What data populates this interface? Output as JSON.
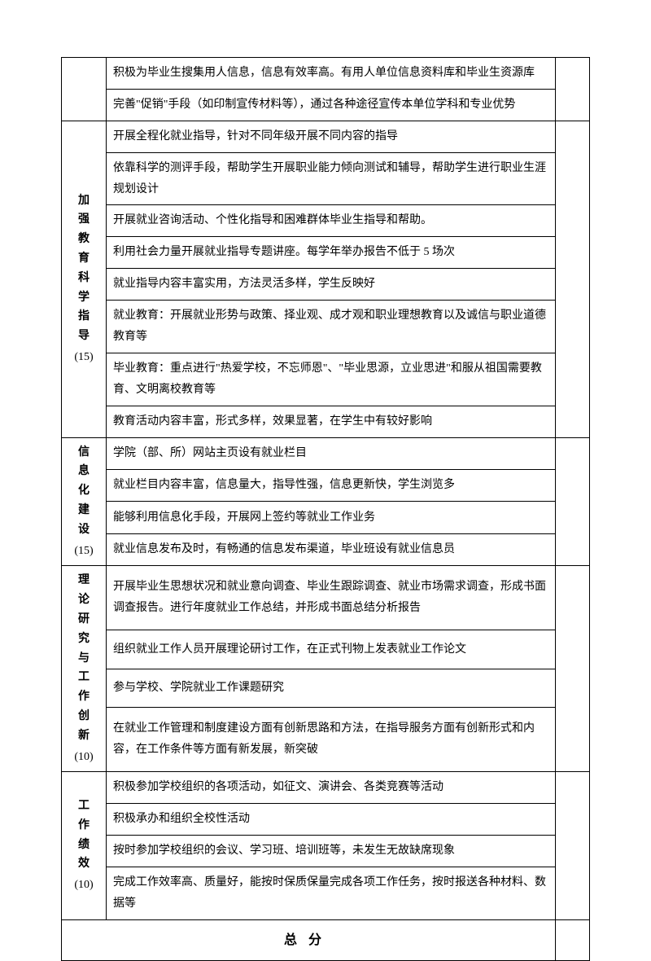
{
  "table": {
    "border_color": "#000000",
    "background_color": "#ffffff",
    "font_family": "SimSun",
    "font_size": 14,
    "sections": [
      {
        "category": null,
        "items": [
          "积极为毕业生搜集用人信息，信息有效率高。有用人单位信息资料库和毕业生资源库",
          "完善\"促销\"手段（如印制宣传材料等），通过各种途径宣传本单位学科和专业优势"
        ]
      },
      {
        "category": "加强教育　科学指导",
        "category_chars": [
          "加",
          "强",
          "教",
          "育",
          "",
          "科",
          "学",
          "指",
          "导"
        ],
        "weight": "(15)",
        "items": [
          "开展全程化就业指导，针对不同年级开展不同内容的指导",
          "依靠科学的测评手段，帮助学生开展职业能力倾向测试和辅导，帮助学生进行职业生涯规划设计",
          "开展就业咨询活动、个性化指导和困难群体毕业生指导和帮助。",
          "利用社会力量开展就业指导专题讲座。每学年举办报告不低于 5 场次",
          "就业指导内容丰富实用，方法灵活多样，学生反映好",
          "就业教育：开展就业形势与政策、择业观、成才观和职业理想教育以及诚信与职业道德教育等",
          "毕业教育：重点进行\"热爱学校，不忘师恩\"、\"毕业思源，立业思进\"和服从祖国需要教育、文明离校教育等",
          "教育活动内容丰富，形式多样，效果显著，在学生中有较好影响"
        ]
      },
      {
        "category": "信息化建设",
        "category_chars": [
          "信",
          "息",
          "化",
          "建",
          "设"
        ],
        "weight": "(15)",
        "items": [
          "学院（部、所）网站主页设有就业栏目",
          "就业栏目内容丰富，信息量大，指导性强，信息更新快，学生浏览多",
          "能够利用信息化手段，开展网上签约等就业工作业务",
          "就业信息发布及时，有畅通的信息发布渠道，毕业班设有就业信息员"
        ]
      },
      {
        "category": "理论研究与工作创新",
        "category_chars": [
          "理",
          "论",
          "研",
          "究",
          "与",
          "工",
          "作",
          "创",
          "新"
        ],
        "weight": "(10)",
        "items": [
          "开展毕业生思想状况和就业意向调查、毕业生跟踪调查、就业市场需求调查，形成书面调查报告。进行年度就业工作总结，并形成书面总结分析报告",
          "组织就业工作人员开展理论研讨工作，在正式刊物上发表就业工作论文",
          "参与学校、学院就业工作课题研究",
          "在就业工作管理和制度建设方面有创新思路和方法，在指导服务方面有创新形式和内容，在工作条件等方面有新发展，新突破"
        ]
      },
      {
        "category": "工作绩效",
        "category_chars": [
          "工",
          "作",
          "绩",
          "效"
        ],
        "weight": "(10)",
        "items": [
          "积极参加学校组织的各项活动，如征文、演讲会、各类竞赛等活动",
          "积极承办和组织全校性活动",
          "按时参加学校组织的会议、学习班、培训班等，未发生无故缺席现象",
          "完成工作效率高、质量好，能按时保质保量完成各项工作任务，按时报送各种材料、数据等"
        ]
      }
    ],
    "total_label": "总分"
  }
}
